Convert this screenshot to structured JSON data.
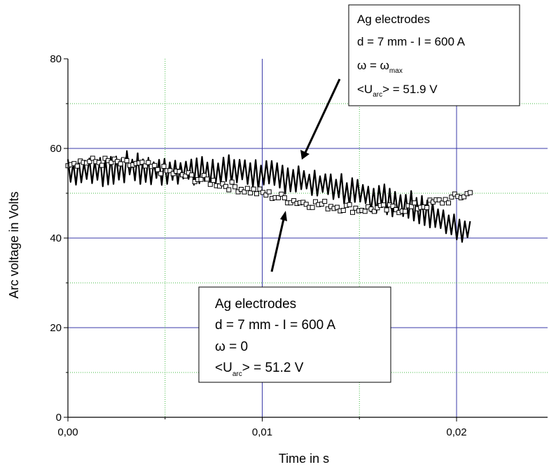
{
  "chart_data": {
    "type": "line",
    "title": "",
    "xlabel": "Time in s",
    "ylabel": "Arc voltage in Volts",
    "xlim": [
      0,
      0.025
    ],
    "ylim": [
      0,
      80
    ],
    "x_ticks": [
      {
        "value": 0,
        "label": "0,00"
      },
      {
        "value": 0.01,
        "label": "0,01"
      },
      {
        "value": 0.02,
        "label": "0,02"
      }
    ],
    "y_ticks": [
      {
        "value": 0,
        "label": "0"
      },
      {
        "value": 20,
        "label": "20"
      },
      {
        "value": 40,
        "label": "40"
      },
      {
        "value": 60,
        "label": "60"
      },
      {
        "value": 80,
        "label": "80"
      }
    ],
    "grid": true,
    "series": [
      {
        "marker": "line",
        "color": "#000000",
        "x": [
          0.0,
          0.001,
          0.002,
          0.003,
          0.004,
          0.005,
          0.006,
          0.007,
          0.008,
          0.009,
          0.01,
          0.011,
          0.012,
          0.013,
          0.014,
          0.015,
          0.016,
          0.017,
          0.018,
          0.019,
          0.0195,
          0.02,
          0.0207
        ],
        "y": [
          55,
          55,
          55,
          56,
          55,
          55,
          55,
          55,
          55,
          55,
          54,
          53.5,
          53,
          52,
          51,
          50,
          49,
          48,
          47,
          45,
          43,
          42,
          42
        ]
      },
      {
        "marker": "open-square",
        "color": "#000000",
        "x": [
          0.0,
          0.001,
          0.002,
          0.003,
          0.004,
          0.005,
          0.006,
          0.007,
          0.008,
          0.009,
          0.01,
          0.011,
          0.012,
          0.013,
          0.014,
          0.015,
          0.016,
          0.017,
          0.018,
          0.019,
          0.02,
          0.0207
        ],
        "y": [
          57,
          57,
          57,
          56.5,
          56,
          55,
          54,
          53,
          52,
          51,
          50,
          49,
          48,
          47.5,
          47,
          46.5,
          46.5,
          46.5,
          47,
          48,
          49,
          50
        ]
      }
    ],
    "annotations": [
      {
        "lines": [
          "Ag electrodes",
          "d = 7 mm - I = 600 A",
          "ω = ω",
          "<U",
          "> = 51.9 V"
        ],
        "subscripts": [
          "max",
          "arc"
        ]
      },
      {
        "lines": [
          "Ag electrodes",
          "d = 7 mm - I = 600 A",
          "ω = 0",
          "<U",
          "> = 51.2 V"
        ],
        "subscripts": [
          "arc"
        ]
      }
    ]
  }
}
